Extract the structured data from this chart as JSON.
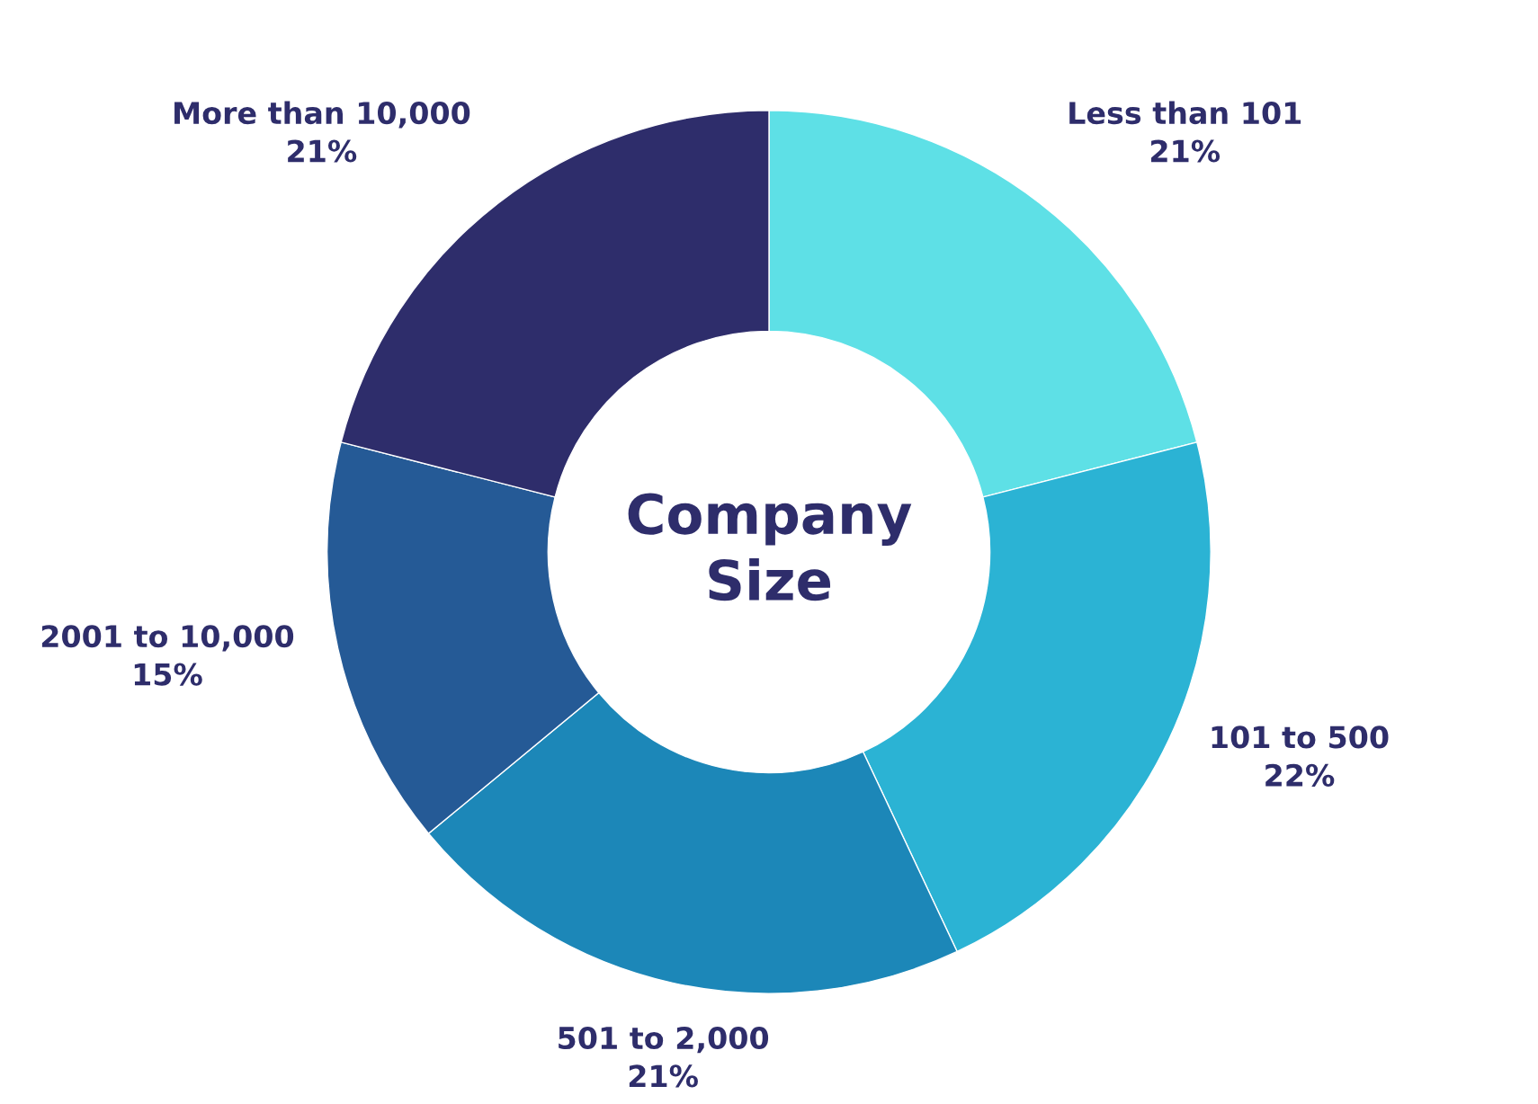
{
  "chart_data": {
    "type": "donut",
    "title": "Company Size",
    "categories": [
      "Less than 101",
      "101 to 500",
      "501 to 2,000",
      "2001 to 10,000",
      "More than 10,000"
    ],
    "values": [
      21,
      22,
      21,
      15,
      21
    ],
    "colors": [
      "#5ee0e6",
      "#2bb3d4",
      "#1c87b8",
      "#255a96",
      "#2e2d6b"
    ],
    "value_labels": [
      "21%",
      "22%",
      "21%",
      "15%",
      "21%"
    ],
    "legend": false
  }
}
